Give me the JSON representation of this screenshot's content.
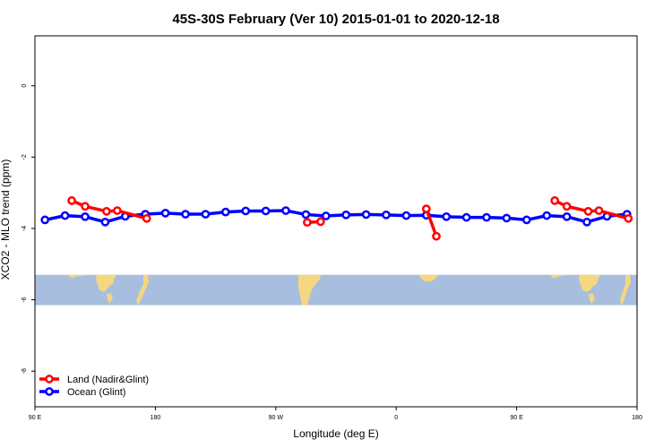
{
  "chart_data": {
    "type": "line",
    "title": "45S-30S February (Ver 10)   2015-01-01 to 2020-12-18",
    "xlabel": "Longitude (deg E)",
    "ylabel": "XCO2 - MLO trend (ppm)",
    "xlim": [
      90,
      540
    ],
    "ylim": [
      -9,
      1.4
    ],
    "x_ticks": [
      {
        "value": 90,
        "label": "90 E"
      },
      {
        "value": 180,
        "label": "180"
      },
      {
        "value": 270,
        "label": "90 W"
      },
      {
        "value": 360,
        "label": "0"
      },
      {
        "value": 450,
        "label": "90 E"
      },
      {
        "value": 540,
        "label": "180"
      }
    ],
    "y_ticks": [
      {
        "value": 0,
        "label": "0"
      },
      {
        "value": -2,
        "label": "-2"
      },
      {
        "value": -4,
        "label": "-4"
      },
      {
        "value": -6,
        "label": "-6"
      },
      {
        "value": -8,
        "label": "-8"
      }
    ],
    "map_band": {
      "ymin": -6.15,
      "ymax": -5.3,
      "ocean_color": "#a8bedf",
      "land_color": "#f5d77f"
    },
    "legend": {
      "position": "bottom-left"
    },
    "series": [
      {
        "name": "Land (Nadir&Glint)",
        "color": "#ff0000",
        "segments": [
          [
            [
              117.5,
              -3.22
            ],
            [
              127.5,
              -3.38
            ],
            [
              143.5,
              -3.52
            ],
            [
              151.5,
              -3.5
            ],
            [
              173.5,
              -3.72
            ]
          ],
          [
            [
              293.5,
              -3.83
            ],
            [
              303.5,
              -3.81
            ]
          ],
          [
            [
              382.5,
              -3.45
            ],
            [
              390,
              -4.22
            ]
          ],
          [
            [
              478.5,
              -3.22
            ],
            [
              487.5,
              -3.38
            ],
            [
              503.5,
              -3.52
            ],
            [
              511.5,
              -3.5
            ],
            [
              533.5,
              -3.72
            ]
          ]
        ]
      },
      {
        "name": "Ocean (Glint)",
        "color": "#0000ff",
        "segments": [
          [
            [
              97.5,
              -3.76
            ],
            [
              112.5,
              -3.64
            ],
            [
              127.5,
              -3.67
            ],
            [
              142.5,
              -3.82
            ],
            [
              157.5,
              -3.66
            ],
            [
              172.5,
              -3.6
            ],
            [
              187.5,
              -3.57
            ],
            [
              202.5,
              -3.6
            ],
            [
              217.5,
              -3.6
            ],
            [
              232.5,
              -3.54
            ],
            [
              247.5,
              -3.51
            ],
            [
              262.5,
              -3.51
            ],
            [
              277.5,
              -3.5
            ],
            [
              292.5,
              -3.61
            ],
            [
              307.5,
              -3.65
            ],
            [
              322.5,
              -3.62
            ],
            [
              337.5,
              -3.61
            ],
            [
              352.5,
              -3.62
            ],
            [
              367.5,
              -3.64
            ],
            [
              382.5,
              -3.63
            ],
            [
              397.5,
              -3.67
            ],
            [
              412.5,
              -3.69
            ],
            [
              427.5,
              -3.69
            ],
            [
              442.5,
              -3.71
            ],
            [
              457.5,
              -3.76
            ],
            [
              472.5,
              -3.64
            ],
            [
              487.5,
              -3.67
            ],
            [
              502.5,
              -3.82
            ],
            [
              517.5,
              -3.66
            ],
            [
              532.5,
              -3.6
            ]
          ]
        ]
      }
    ]
  }
}
